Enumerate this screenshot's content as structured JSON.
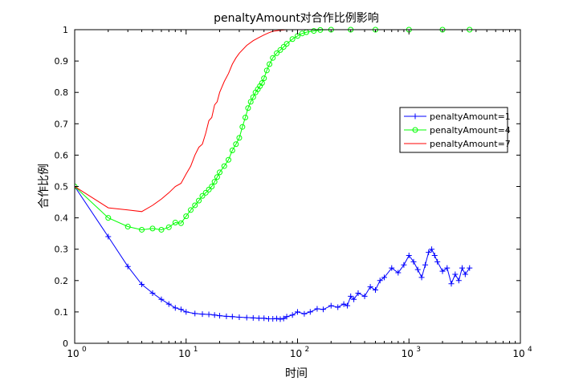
{
  "chart_data": {
    "type": "line",
    "title": "penaltyAmount对合作比例影响",
    "xlabel": "时间",
    "ylabel": "合作比例",
    "xscale": "log",
    "xlim": [
      1,
      10000
    ],
    "ylim": [
      0,
      1
    ],
    "x_ticks": [
      {
        "value": 1,
        "base": "10",
        "exp": "0"
      },
      {
        "value": 10,
        "base": "10",
        "exp": "1"
      },
      {
        "value": 100,
        "base": "10",
        "exp": "2"
      },
      {
        "value": 1000,
        "base": "10",
        "exp": "3"
      },
      {
        "value": 10000,
        "base": "10",
        "exp": "4"
      }
    ],
    "y_ticks": [
      "0",
      "0.1",
      "0.2",
      "0.3",
      "0.4",
      "0.5",
      "0.6",
      "0.7",
      "0.8",
      "0.9",
      "1"
    ],
    "grid": false,
    "legend_position": "right",
    "series": [
      {
        "name": "penaltyAmount=1",
        "color": "#0000ff",
        "marker": "plus",
        "x": [
          1,
          2,
          3,
          4,
          5,
          6,
          7,
          8,
          9,
          10,
          12,
          14,
          16,
          18,
          20,
          23,
          26,
          30,
          35,
          40,
          45,
          50,
          55,
          60,
          65,
          70,
          75,
          80,
          90,
          100,
          115,
          130,
          150,
          170,
          200,
          230,
          260,
          280,
          300,
          320,
          350,
          400,
          450,
          500,
          550,
          600,
          700,
          800,
          900,
          1000,
          1100,
          1200,
          1300,
          1400,
          1500,
          1600,
          1700,
          1800,
          2000,
          2200,
          2400,
          2600,
          2800,
          3000,
          3200,
          3500
        ],
        "y": [
          0.5,
          0.34,
          0.245,
          0.188,
          0.16,
          0.14,
          0.125,
          0.113,
          0.108,
          0.1,
          0.095,
          0.093,
          0.092,
          0.09,
          0.088,
          0.086,
          0.085,
          0.083,
          0.082,
          0.081,
          0.08,
          0.08,
          0.078,
          0.078,
          0.079,
          0.077,
          0.079,
          0.085,
          0.09,
          0.1,
          0.094,
          0.1,
          0.11,
          0.108,
          0.12,
          0.115,
          0.125,
          0.12,
          0.15,
          0.14,
          0.16,
          0.15,
          0.18,
          0.17,
          0.2,
          0.21,
          0.24,
          0.225,
          0.25,
          0.28,
          0.26,
          0.235,
          0.21,
          0.25,
          0.29,
          0.3,
          0.28,
          0.26,
          0.23,
          0.24,
          0.19,
          0.22,
          0.2,
          0.24,
          0.22,
          0.24
        ]
      },
      {
        "name": "penaltyAmount=4",
        "color": "#00ff00",
        "marker": "circle",
        "x": [
          1,
          2,
          3,
          4,
          5,
          6,
          7,
          8,
          9,
          10,
          11,
          12,
          13,
          14,
          15,
          16,
          17,
          18,
          19,
          20,
          22,
          24,
          26,
          28,
          30,
          32,
          34,
          36,
          38,
          40,
          42,
          44,
          46,
          48,
          50,
          53,
          56,
          60,
          65,
          70,
          75,
          80,
          90,
          100,
          110,
          120,
          140,
          160,
          200,
          300,
          500,
          1000,
          2000,
          3500
        ],
        "y": [
          0.5,
          0.4,
          0.372,
          0.362,
          0.366,
          0.362,
          0.37,
          0.385,
          0.383,
          0.405,
          0.425,
          0.44,
          0.455,
          0.47,
          0.48,
          0.49,
          0.5,
          0.515,
          0.53,
          0.545,
          0.565,
          0.585,
          0.615,
          0.635,
          0.655,
          0.69,
          0.72,
          0.75,
          0.77,
          0.785,
          0.8,
          0.81,
          0.82,
          0.83,
          0.845,
          0.87,
          0.89,
          0.91,
          0.925,
          0.935,
          0.945,
          0.955,
          0.97,
          0.98,
          0.988,
          0.992,
          0.996,
          0.999,
          1.0,
          1.0,
          1.0,
          1.0,
          1.0,
          1.0
        ]
      },
      {
        "name": "penaltyAmount=7",
        "color": "#ff0000",
        "marker": "none",
        "x": [
          1,
          2,
          3,
          4,
          5,
          6,
          7,
          8,
          9,
          10,
          11,
          12,
          13,
          14,
          15,
          16,
          17,
          18,
          19,
          20,
          22,
          24,
          26,
          28,
          30,
          35,
          40,
          45,
          50,
          55,
          60,
          70,
          80,
          100,
          3500
        ],
        "y": [
          0.5,
          0.432,
          0.425,
          0.42,
          0.44,
          0.46,
          0.48,
          0.5,
          0.51,
          0.54,
          0.565,
          0.6,
          0.625,
          0.635,
          0.67,
          0.71,
          0.72,
          0.76,
          0.77,
          0.8,
          0.835,
          0.86,
          0.89,
          0.91,
          0.925,
          0.95,
          0.965,
          0.975,
          0.983,
          0.99,
          0.995,
          0.998,
          1.0,
          1.0,
          1.0
        ]
      }
    ]
  }
}
